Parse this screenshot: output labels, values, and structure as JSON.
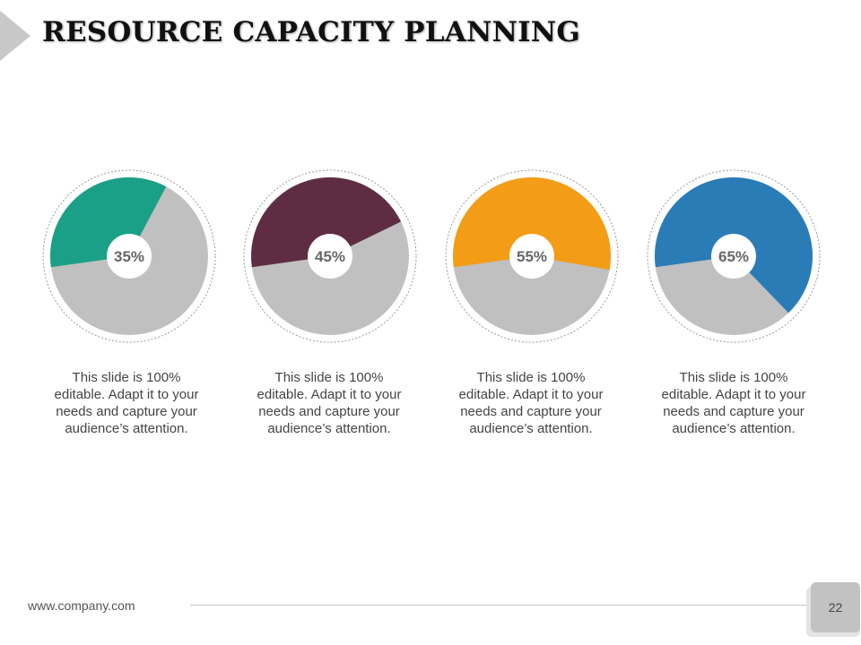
{
  "slide": {
    "title": "RESOURCE CAPACITY PLANNING",
    "footer_url": "www.company.com",
    "page_number": "22"
  },
  "chart_data": {
    "type": "pie",
    "title": "RESOURCE CAPACITY PLANNING",
    "base_color": "#c0c0c0",
    "items": [
      {
        "label": "35%",
        "value": 35,
        "color": "#1aa086",
        "description": "This slide is 100% editable. Adapt it to your needs and capture your audience’s attention."
      },
      {
        "label": "45%",
        "value": 45,
        "color": "#5e2d44",
        "description": "This slide is 100% editable. Adapt it to your needs and capture your audience’s attention."
      },
      {
        "label": "55%",
        "value": 55,
        "color": "#f39c16",
        "description": "This slide is 100% editable. Adapt it to your needs and capture your audience’s attention."
      },
      {
        "label": "65%",
        "value": 65,
        "color": "#2a7cb7",
        "description": "This slide is 100% editable. Adapt it to your needs and capture your audience’s attention."
      }
    ]
  }
}
